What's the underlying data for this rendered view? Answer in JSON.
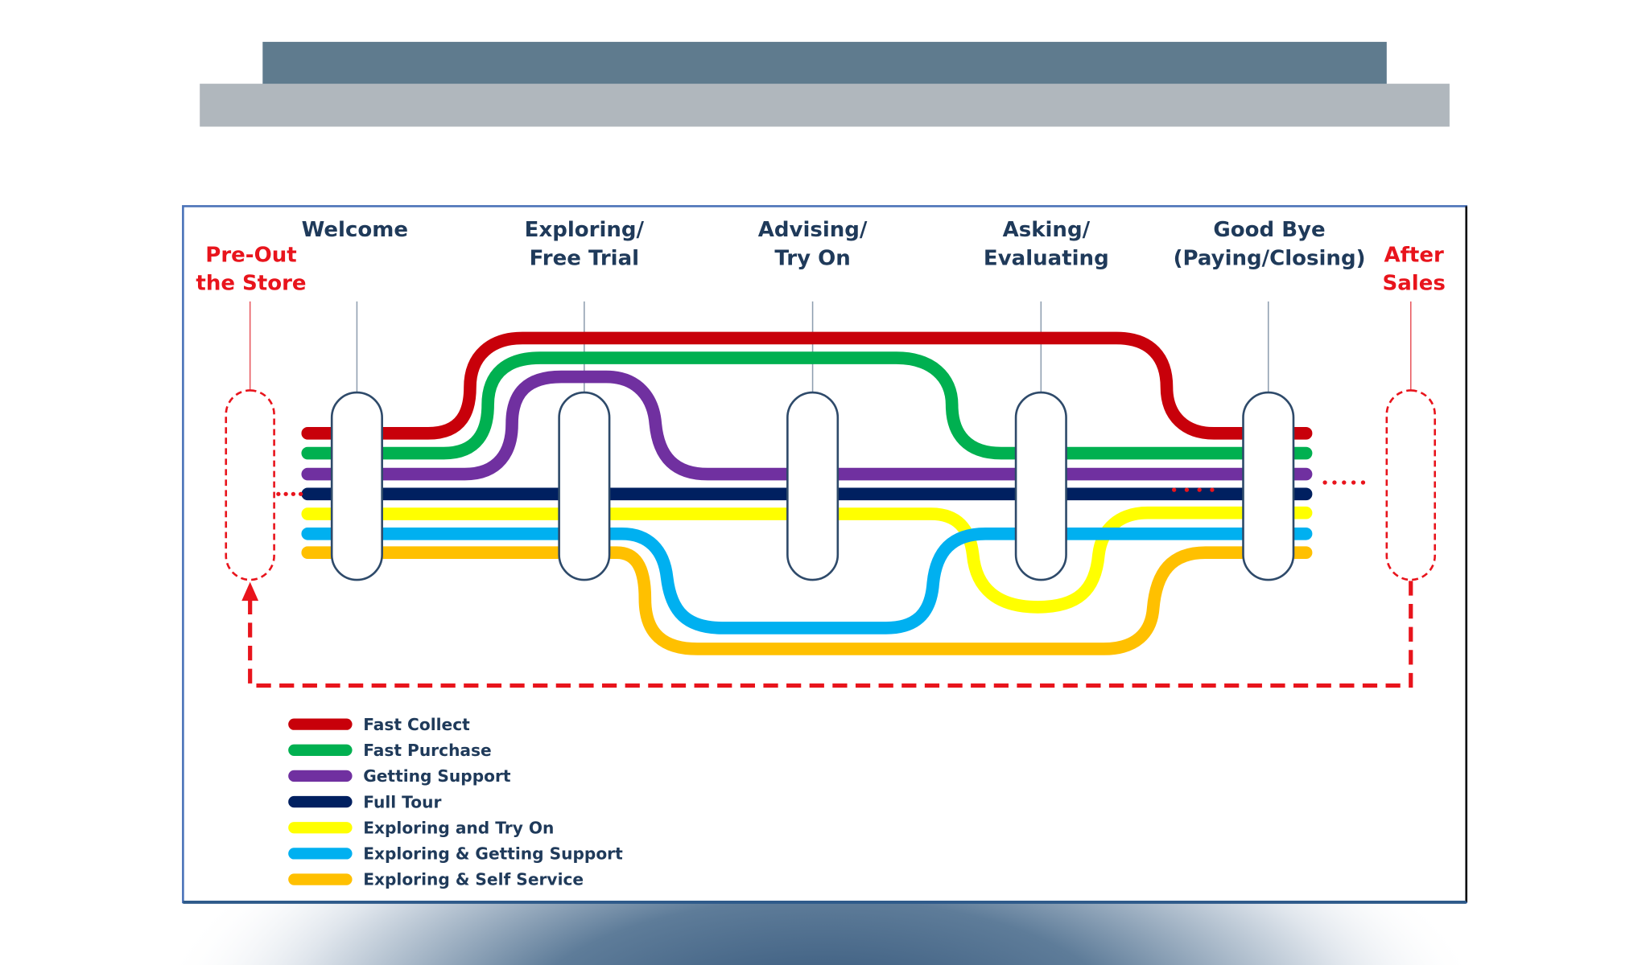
{
  "header": {
    "bar_dark_color": "#5f7b8e",
    "bar_light_color": "#b0b7bd"
  },
  "stages": [
    {
      "line1": "Welcome",
      "line2": ""
    },
    {
      "line1": "Exploring/",
      "line2": "Free Trial"
    },
    {
      "line1": "Advising/",
      "line2": "Try On"
    },
    {
      "line1": "Asking/",
      "line2": "Evaluating"
    },
    {
      "line1": "Good Bye",
      "line2": "(Paying/Closing)"
    }
  ],
  "pre_stage": {
    "line1": "Pre-Out",
    "line2": "the Store"
  },
  "post_stage": {
    "line1": "After",
    "line2": "Sales"
  },
  "journeys": [
    {
      "name": "Fast Collect",
      "color": "#c8000a"
    },
    {
      "name": "Fast Purchase",
      "color": "#00b050"
    },
    {
      "name": "Getting Support",
      "color": "#7030a0"
    },
    {
      "name": "Full Tour",
      "color": "#002060"
    },
    {
      "name": "Exploring and Try On",
      "color": "#ffff00"
    },
    {
      "name": "Exploring & Getting Support",
      "color": "#00b0f0"
    },
    {
      "name": "Exploring & Self Service",
      "color": "#ffc000"
    }
  ],
  "loop_color": "#e8141c"
}
